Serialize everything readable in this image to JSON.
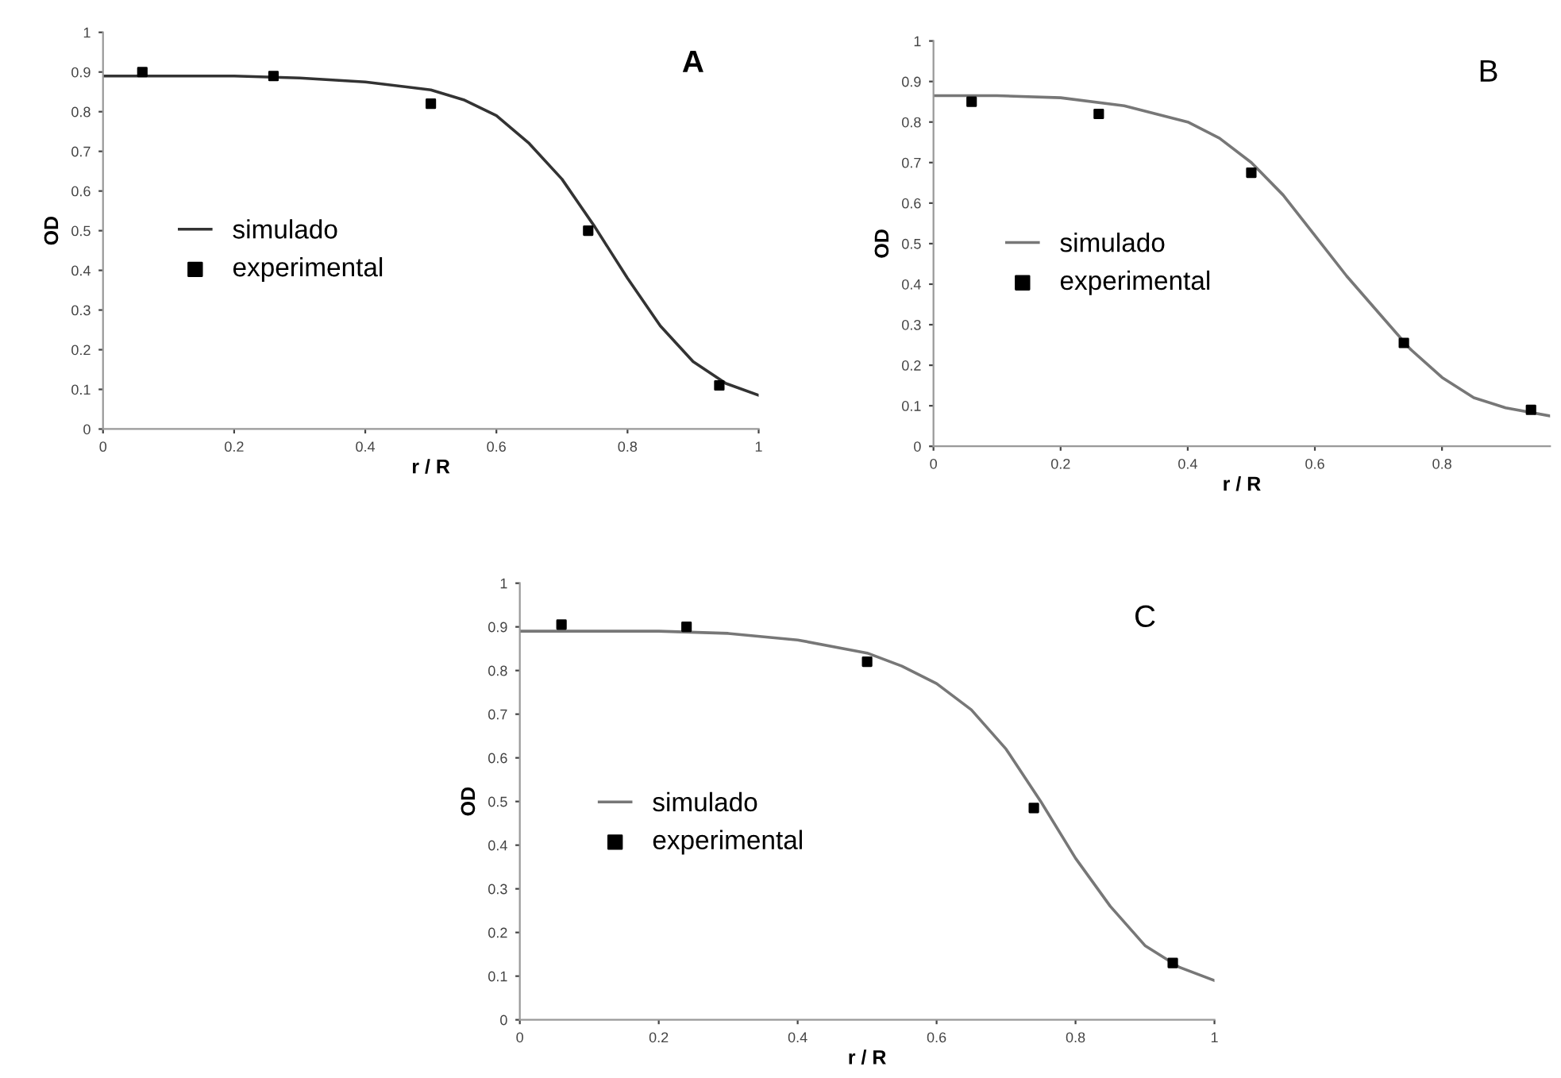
{
  "chart_data": [
    {
      "type": "line",
      "title": "A",
      "xlabel": "r / R",
      "ylabel": "OD",
      "xlim": [
        0,
        1
      ],
      "ylim": [
        0,
        1
      ],
      "xticks": [
        0,
        0.2,
        0.4,
        0.6,
        0.8,
        1
      ],
      "yticks": [
        0,
        0.1,
        0.2,
        0.3,
        0.4,
        0.5,
        0.6,
        0.7,
        0.8,
        0.9,
        1
      ],
      "legend": "left",
      "series": [
        {
          "name": "simulado",
          "color": "#333333",
          "x": [
            0,
            0.1,
            0.2,
            0.3,
            0.4,
            0.5,
            0.55,
            0.6,
            0.65,
            0.7,
            0.75,
            0.8,
            0.85,
            0.9,
            0.95,
            1.0
          ],
          "values": [
            0.89,
            0.89,
            0.89,
            0.885,
            0.875,
            0.855,
            0.83,
            0.79,
            0.72,
            0.63,
            0.51,
            0.38,
            0.26,
            0.17,
            0.115,
            0.085
          ]
        },
        {
          "name": "experimental",
          "type": "scatter",
          "color": "#000000",
          "marker": "square",
          "x": [
            0.06,
            0.26,
            0.5,
            0.74,
            0.94
          ],
          "values": [
            0.9,
            0.89,
            0.82,
            0.5,
            0.11
          ]
        }
      ]
    },
    {
      "type": "line",
      "title": "B",
      "xlabel": "r / R",
      "ylabel": "OD",
      "xlim": [
        0,
        0.97
      ],
      "ylim": [
        0,
        1
      ],
      "xticks": [
        0,
        0.2,
        0.4,
        0.6,
        0.8
      ],
      "yticks": [
        0,
        0.1,
        0.2,
        0.3,
        0.4,
        0.5,
        0.6,
        0.7,
        0.8,
        0.9,
        1
      ],
      "legend": "left",
      "series": [
        {
          "name": "simulado",
          "color": "#777777",
          "x": [
            0,
            0.1,
            0.2,
            0.3,
            0.4,
            0.45,
            0.5,
            0.55,
            0.6,
            0.65,
            0.7,
            0.75,
            0.8,
            0.85,
            0.9,
            0.97
          ],
          "values": [
            0.865,
            0.865,
            0.86,
            0.84,
            0.8,
            0.76,
            0.7,
            0.62,
            0.52,
            0.42,
            0.33,
            0.24,
            0.17,
            0.12,
            0.095,
            0.075
          ]
        },
        {
          "name": "experimental",
          "type": "scatter",
          "color": "#000000",
          "marker": "square",
          "x": [
            0.06,
            0.26,
            0.5,
            0.74,
            0.94
          ],
          "values": [
            0.85,
            0.82,
            0.675,
            0.255,
            0.09
          ]
        }
      ]
    },
    {
      "type": "line",
      "title": "C",
      "xlabel": "r / R",
      "ylabel": "OD",
      "xlim": [
        0,
        1
      ],
      "ylim": [
        0,
        1
      ],
      "xticks": [
        0,
        0.2,
        0.4,
        0.6,
        0.8,
        1
      ],
      "yticks": [
        0,
        0.1,
        0.2,
        0.3,
        0.4,
        0.5,
        0.6,
        0.7,
        0.8,
        0.9,
        1
      ],
      "legend": "left",
      "series": [
        {
          "name": "simulado",
          "color": "#777777",
          "x": [
            0,
            0.2,
            0.3,
            0.4,
            0.5,
            0.55,
            0.6,
            0.65,
            0.7,
            0.75,
            0.8,
            0.85,
            0.9,
            0.95,
            1.0
          ],
          "values": [
            0.89,
            0.89,
            0.885,
            0.87,
            0.84,
            0.81,
            0.77,
            0.71,
            0.62,
            0.5,
            0.37,
            0.26,
            0.17,
            0.12,
            0.09
          ]
        },
        {
          "name": "experimental",
          "type": "scatter",
          "color": "#000000",
          "marker": "square",
          "x": [
            0.06,
            0.24,
            0.5,
            0.74,
            0.94
          ],
          "values": [
            0.905,
            0.9,
            0.82,
            0.485,
            0.13
          ]
        }
      ]
    }
  ]
}
